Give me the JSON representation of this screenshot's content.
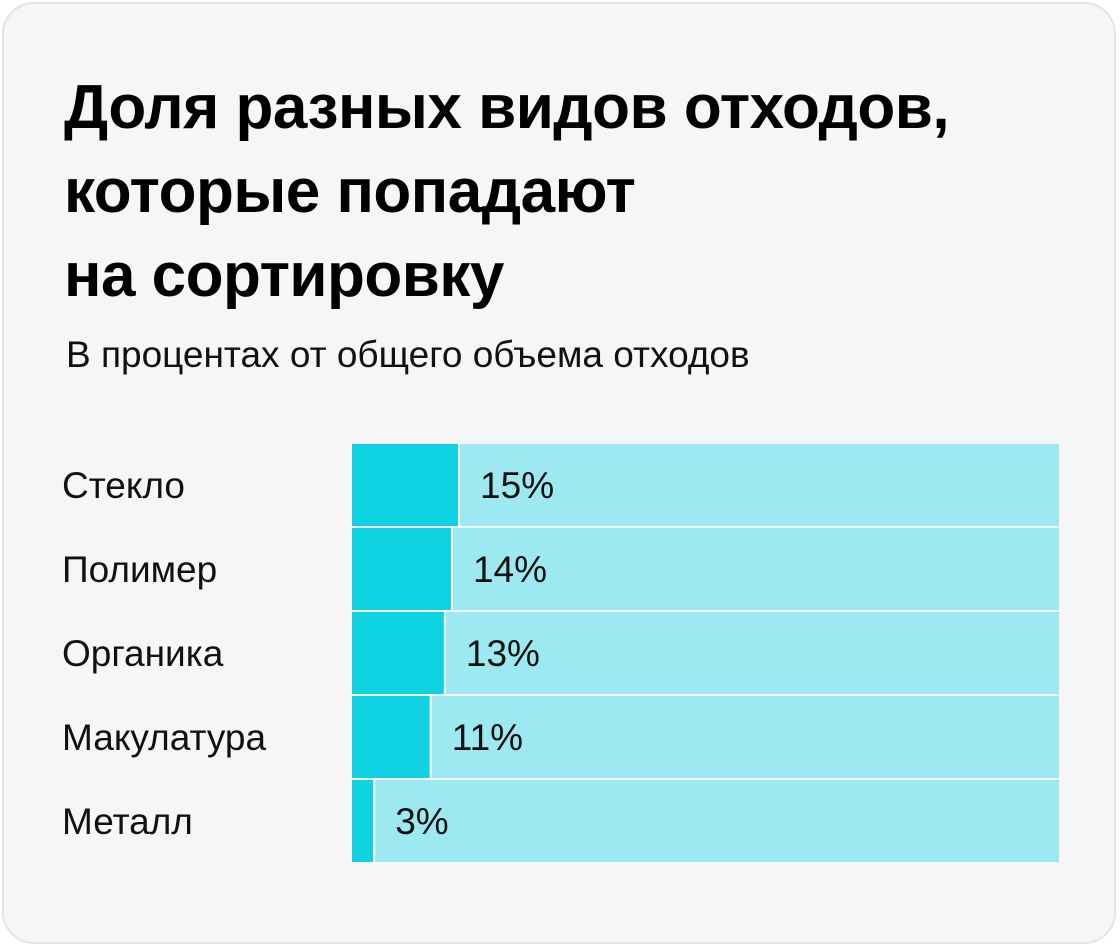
{
  "chart_data": {
    "type": "bar",
    "orientation": "horizontal",
    "stacked_background": true,
    "title": "Доля разных видов отходов, которые попадают на сортировку",
    "title_lines": [
      "Доля разных видов отходов,",
      "которые попадают",
      "на сортировку"
    ],
    "subtitle": "В процентах от общего объема отходов",
    "categories": [
      "Стекло",
      "Полимер",
      "Органика",
      "Макулатура",
      "Металл"
    ],
    "values": [
      15,
      14,
      13,
      11,
      3
    ],
    "value_labels": [
      "15%",
      "14%",
      "13%",
      "11%",
      "3%"
    ],
    "xlim": [
      0,
      100
    ],
    "grid": false,
    "legend": "none",
    "colors": {
      "value": "#0fd2e3",
      "remainder": "#9ce9f1",
      "background": "#f6f6f6",
      "text": "#111111"
    }
  }
}
